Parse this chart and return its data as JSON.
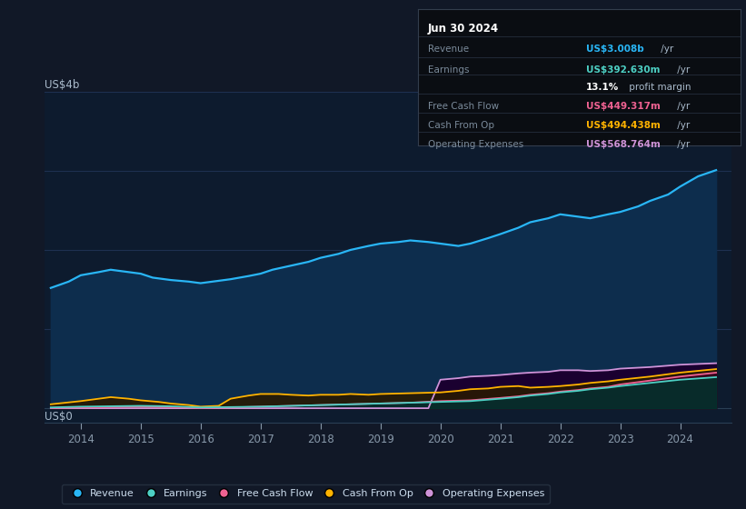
{
  "background_color": "#111827",
  "plot_bg_color": "#0d1b2e",
  "ylabel": "US$4b",
  "y0label": "US$0",
  "xlim": [
    2013.4,
    2024.85
  ],
  "ylim": [
    -0.18,
    4.0
  ],
  "ytop": 4.0,
  "xticks": [
    2014,
    2015,
    2016,
    2017,
    2018,
    2019,
    2020,
    2021,
    2022,
    2023,
    2024
  ],
  "series": {
    "revenue": {
      "line_color": "#29b6f6",
      "fill_color": "#0d2d4d",
      "years": [
        2013.5,
        2013.8,
        2014.0,
        2014.3,
        2014.5,
        2014.8,
        2015.0,
        2015.2,
        2015.5,
        2015.8,
        2016.0,
        2016.2,
        2016.5,
        2016.8,
        2017.0,
        2017.2,
        2017.5,
        2017.8,
        2018.0,
        2018.3,
        2018.5,
        2018.8,
        2019.0,
        2019.3,
        2019.5,
        2019.8,
        2020.0,
        2020.3,
        2020.5,
        2020.8,
        2021.0,
        2021.3,
        2021.5,
        2021.8,
        2022.0,
        2022.3,
        2022.5,
        2022.8,
        2023.0,
        2023.3,
        2023.5,
        2023.8,
        2024.0,
        2024.3,
        2024.6
      ],
      "values": [
        1.52,
        1.6,
        1.68,
        1.72,
        1.75,
        1.72,
        1.7,
        1.65,
        1.62,
        1.6,
        1.58,
        1.6,
        1.63,
        1.67,
        1.7,
        1.75,
        1.8,
        1.85,
        1.9,
        1.95,
        2.0,
        2.05,
        2.08,
        2.1,
        2.12,
        2.1,
        2.08,
        2.05,
        2.08,
        2.15,
        2.2,
        2.28,
        2.35,
        2.4,
        2.45,
        2.42,
        2.4,
        2.45,
        2.48,
        2.55,
        2.62,
        2.7,
        2.8,
        2.93,
        3.008
      ]
    },
    "earnings": {
      "line_color": "#4dd0c4",
      "fill_color": "#00332d",
      "years": [
        2013.5,
        2014.0,
        2014.5,
        2015.0,
        2015.5,
        2016.0,
        2016.5,
        2017.0,
        2017.5,
        2018.0,
        2018.5,
        2019.0,
        2019.5,
        2020.0,
        2020.5,
        2021.0,
        2021.3,
        2021.5,
        2021.8,
        2022.0,
        2022.3,
        2022.5,
        2022.8,
        2023.0,
        2023.5,
        2024.0,
        2024.6
      ],
      "values": [
        0.01,
        0.02,
        0.025,
        0.03,
        0.025,
        0.01,
        0.015,
        0.02,
        0.03,
        0.04,
        0.05,
        0.06,
        0.07,
        0.08,
        0.09,
        0.12,
        0.14,
        0.16,
        0.18,
        0.2,
        0.22,
        0.24,
        0.26,
        0.28,
        0.32,
        0.36,
        0.3926
      ]
    },
    "free_cash_flow": {
      "line_color": "#f06292",
      "fill_color": "#3a0020",
      "years": [
        2013.5,
        2014.0,
        2014.5,
        2015.0,
        2015.5,
        2016.0,
        2016.5,
        2017.0,
        2017.5,
        2018.0,
        2018.5,
        2019.0,
        2019.5,
        2020.0,
        2020.5,
        2021.0,
        2021.3,
        2021.5,
        2021.8,
        2022.0,
        2022.3,
        2022.5,
        2022.8,
        2023.0,
        2023.5,
        2024.0,
        2024.6
      ],
      "values": [
        0.005,
        0.01,
        0.015,
        0.02,
        0.015,
        0.005,
        0.01,
        0.02,
        0.03,
        0.04,
        0.05,
        0.06,
        0.07,
        0.09,
        0.1,
        0.13,
        0.15,
        0.17,
        0.19,
        0.21,
        0.23,
        0.25,
        0.27,
        0.3,
        0.35,
        0.4,
        0.4493
      ]
    },
    "cash_from_op": {
      "line_color": "#ffb300",
      "fill_color": "#2a1a00",
      "years": [
        2013.5,
        2014.0,
        2014.3,
        2014.5,
        2014.8,
        2015.0,
        2015.3,
        2015.5,
        2015.8,
        2016.0,
        2016.3,
        2016.5,
        2016.8,
        2017.0,
        2017.3,
        2017.5,
        2017.8,
        2018.0,
        2018.3,
        2018.5,
        2018.8,
        2019.0,
        2019.5,
        2020.0,
        2020.3,
        2020.5,
        2020.8,
        2021.0,
        2021.3,
        2021.5,
        2021.8,
        2022.0,
        2022.3,
        2022.5,
        2022.8,
        2023.0,
        2023.5,
        2024.0,
        2024.6
      ],
      "values": [
        0.05,
        0.09,
        0.12,
        0.14,
        0.12,
        0.1,
        0.08,
        0.06,
        0.04,
        0.02,
        0.03,
        0.12,
        0.16,
        0.18,
        0.18,
        0.17,
        0.16,
        0.17,
        0.17,
        0.18,
        0.17,
        0.18,
        0.19,
        0.2,
        0.22,
        0.24,
        0.25,
        0.27,
        0.28,
        0.26,
        0.27,
        0.28,
        0.3,
        0.32,
        0.34,
        0.36,
        0.4,
        0.45,
        0.4944
      ]
    },
    "operating_expenses": {
      "line_color": "#ce93d8",
      "fill_color": "#1a0030",
      "years": [
        2013.5,
        2014.0,
        2014.5,
        2015.0,
        2015.5,
        2016.0,
        2016.5,
        2017.0,
        2017.5,
        2018.0,
        2018.5,
        2019.0,
        2019.5,
        2019.8,
        2020.0,
        2020.3,
        2020.5,
        2020.8,
        2021.0,
        2021.3,
        2021.5,
        2021.8,
        2022.0,
        2022.3,
        2022.5,
        2022.8,
        2023.0,
        2023.5,
        2024.0,
        2024.6
      ],
      "values": [
        0.0,
        0.0,
        0.0,
        0.0,
        0.0,
        0.0,
        0.0,
        0.0,
        0.0,
        0.0,
        0.0,
        0.0,
        0.0,
        0.0,
        0.36,
        0.38,
        0.4,
        0.41,
        0.42,
        0.44,
        0.45,
        0.46,
        0.48,
        0.48,
        0.47,
        0.48,
        0.5,
        0.52,
        0.55,
        0.5688
      ]
    }
  },
  "infobox": {
    "title": "Jun 30 2024",
    "rows": [
      {
        "label": "Revenue",
        "value": "US$3.008b",
        "suffix": " /yr",
        "value_color": "#29b6f6"
      },
      {
        "label": "Earnings",
        "value": "US$392.630m",
        "suffix": " /yr",
        "value_color": "#4dd0c4"
      },
      {
        "label": "",
        "value": "13.1%",
        "suffix": " profit margin",
        "value_color": "#ffffff"
      },
      {
        "label": "Free Cash Flow",
        "value": "US$449.317m",
        "suffix": " /yr",
        "value_color": "#f06292"
      },
      {
        "label": "Cash From Op",
        "value": "US$494.438m",
        "suffix": " /yr",
        "value_color": "#ffb300"
      },
      {
        "label": "Operating Expenses",
        "value": "US$568.764m",
        "suffix": " /yr",
        "value_color": "#ce93d8"
      }
    ]
  },
  "legend": [
    {
      "label": "Revenue",
      "color": "#29b6f6"
    },
    {
      "label": "Earnings",
      "color": "#4dd0c4"
    },
    {
      "label": "Free Cash Flow",
      "color": "#f06292"
    },
    {
      "label": "Cash From Op",
      "color": "#ffb300"
    },
    {
      "label": "Operating Expenses",
      "color": "#ce93d8"
    }
  ]
}
